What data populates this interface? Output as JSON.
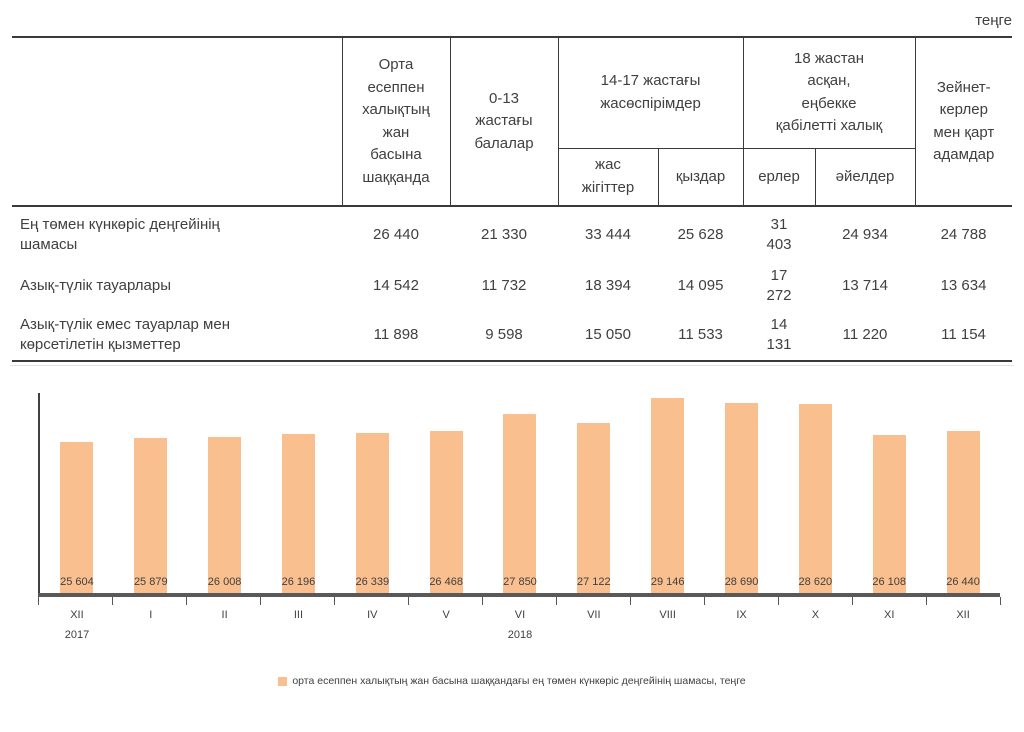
{
  "unit_label": "теңге",
  "table": {
    "header": {
      "per_capita": "Орта\nесеппен\nхалықтың\nжан\nбасына\nшаққанда",
      "children": "0-13\nжастағы\nбалалар",
      "teens_group": "14-17 жастағы\nжасөспірімдер",
      "teens_boys": "жас\nжігіттер",
      "teens_girls": "қыздар",
      "adults_group": "18 жастан\nасқан,\nеңбекке\nқабілетті халық",
      "adults_men": "ерлер",
      "adults_women": "әйелдер",
      "pensioners": "Зейнет-\nкерлер\nмен қарт\nадамдар"
    },
    "rows": [
      {
        "label": "Ең төмен күнкөріс деңгейінің\nшамасы",
        "values": [
          "26 440",
          "21 330",
          "33 444",
          "25 628",
          "31 403",
          "24 934",
          "24 788"
        ]
      },
      {
        "label": "Азық-түлік тауарлары",
        "values": [
          "14 542",
          "11 732",
          "18 394",
          "14 095",
          "17 272",
          "13 714",
          "13 634"
        ]
      },
      {
        "label": "Азық-түлік емес тауарлар мен\nкөрсетілетін қызметтер",
        "values": [
          "11 898",
          "9 598",
          "15 050",
          "11 533",
          "14 131",
          "11 220",
          "11 154"
        ]
      }
    ]
  },
  "chart_data": {
    "type": "bar",
    "categories": [
      "XII",
      "I",
      "II",
      "III",
      "IV",
      "V",
      "VI",
      "VII",
      "VIII",
      "IX",
      "X",
      "XI",
      "XII"
    ],
    "values": [
      25604,
      25879,
      26008,
      26196,
      26339,
      26468,
      27850,
      27122,
      29146,
      28690,
      28620,
      26108,
      26440
    ],
    "value_labels": [
      "25 604",
      "25 879",
      "26 008",
      "26 196",
      "26 339",
      "26 468",
      "27 850",
      "27 122",
      "29 146",
      "28 690",
      "28 620",
      "26 108",
      "26 440"
    ],
    "years": [
      {
        "label": "2017"
      },
      {
        "label": "2018"
      }
    ],
    "legend": "орта есеппен халықтың жан басына шаққандағы ең төмен күнкөріс деңгейінің шамасы, теңге",
    "bar_color": "#FABF8F",
    "axis_color": "#595959",
    "ylim": [
      13400,
      29530
    ],
    "grid": false,
    "legend_position": "bottom",
    "title": "",
    "xlabel": "",
    "ylabel": ""
  }
}
